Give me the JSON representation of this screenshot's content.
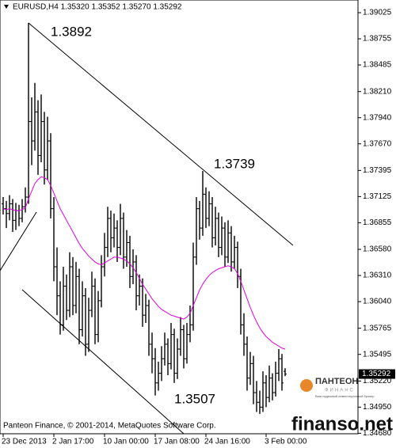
{
  "chart_data": {
    "type": "ohlc",
    "title": "EURUSD,H4  1.35320 1.35352 1.35270 1.35292",
    "footnote": "Panteon Finance, © 2001-2014, MetaQuotes Software Corp.",
    "watermark": "finanso.net",
    "logo": {
      "name": "ПАНТЕОН",
      "sub": "ФИНАНС",
      "tagline": "Ваш надежный инвестиционный брокер"
    },
    "annotations": [
      "1.3892",
      "1.3739",
      "1.3507"
    ],
    "bar_color": "#000000",
    "ma_color": "#e000e0",
    "ylim": [
      1.34675,
      1.39156
    ],
    "yticks": [
      1.39025,
      1.38755,
      1.38485,
      {
        "value": 1.3821,
        "label": "1.38210"
      },
      {
        "value": 1.3794,
        "label": "1.37940"
      },
      {
        "value": 1.3767,
        "label": "1.37670"
      },
      1.37395,
      1.37125,
      1.36855,
      {
        "value": 1.3658,
        "label": "1.36580"
      },
      {
        "value": 1.3631,
        "label": "1.36310"
      },
      {
        "value": 1.3604,
        "label": "1.36040"
      },
      1.35765,
      1.35495,
      {
        "value": 1.3522,
        "label": "1.35220"
      },
      {
        "value": 1.3495,
        "label": "1.34950"
      },
      {
        "value": 1.3468,
        "label": "1.34680"
      }
    ],
    "categories": [
      "23 Dec 2013",
      null,
      null,
      null,
      null,
      null,
      null,
      null,
      null,
      null,
      null,
      null,
      null,
      null,
      null,
      null,
      "2 Jan 17:00",
      null,
      null,
      null,
      null,
      null,
      null,
      null,
      null,
      null,
      null,
      null,
      null,
      null,
      null,
      null,
      "10 Jan 00:00",
      null,
      null,
      null,
      null,
      null,
      null,
      null,
      null,
      null,
      null,
      null,
      null,
      null,
      null,
      null,
      "17 Jan 08:00",
      null,
      null,
      null,
      null,
      null,
      null,
      null,
      null,
      null,
      null,
      null,
      null,
      null,
      null,
      null,
      "24 Jan 16:00",
      null,
      null,
      null,
      null,
      null,
      null,
      null,
      null,
      null,
      null,
      null,
      null,
      null,
      null,
      null,
      null,
      null,
      null,
      "3 Feb 00:00",
      null,
      null,
      null,
      null,
      null,
      null
    ],
    "ohlc": [
      [
        1.3705,
        1.3712,
        1.3694,
        1.37
      ],
      [
        1.37,
        1.3708,
        1.368,
        1.3695
      ],
      [
        1.3695,
        1.3714,
        1.3688,
        1.3705
      ],
      [
        1.3705,
        1.371,
        1.3676,
        1.3688
      ],
      [
        1.3688,
        1.3706,
        1.3678,
        1.3698
      ],
      [
        1.3698,
        1.3704,
        1.3682,
        1.369
      ],
      [
        1.369,
        1.371,
        1.3686,
        1.3702
      ],
      [
        1.3702,
        1.3722,
        1.3696,
        1.3712
      ],
      [
        1.3712,
        1.3892,
        1.3705,
        1.379
      ],
      [
        1.379,
        1.3815,
        1.3745,
        1.377
      ],
      [
        1.377,
        1.383,
        1.376,
        1.38
      ],
      [
        1.38,
        1.3812,
        1.3735,
        1.3755
      ],
      [
        1.3755,
        1.3818,
        1.3748,
        1.379
      ],
      [
        1.379,
        1.38,
        1.3725,
        1.374
      ],
      [
        1.374,
        1.3795,
        1.373,
        1.377
      ],
      [
        1.377,
        1.3778,
        1.369,
        1.37
      ],
      [
        1.37,
        1.3712,
        1.3625,
        1.364
      ],
      [
        1.364,
        1.366,
        1.359,
        1.361
      ],
      [
        1.361,
        1.3625,
        1.357,
        1.358
      ],
      [
        1.358,
        1.364,
        1.3574,
        1.362
      ],
      [
        1.362,
        1.3632,
        1.3585,
        1.3595
      ],
      [
        1.3595,
        1.3655,
        1.3588,
        1.364
      ],
      [
        1.364,
        1.365,
        1.359,
        1.36
      ],
      [
        1.36,
        1.3645,
        1.3592,
        1.363
      ],
      [
        1.363,
        1.3638,
        1.356,
        1.3575
      ],
      [
        1.3575,
        1.3625,
        1.3568,
        1.361
      ],
      [
        1.361,
        1.3618,
        1.3548,
        1.356
      ],
      [
        1.356,
        1.3608,
        1.3552,
        1.3595
      ],
      [
        1.3595,
        1.3635,
        1.3588,
        1.362
      ],
      [
        1.362,
        1.3628,
        1.356,
        1.357
      ],
      [
        1.357,
        1.3615,
        1.3562,
        1.3605
      ],
      [
        1.3605,
        1.3652,
        1.3598,
        1.364
      ],
      [
        1.364,
        1.3675,
        1.363,
        1.366
      ],
      [
        1.366,
        1.3702,
        1.365,
        1.369
      ],
      [
        1.369,
        1.3698,
        1.3655,
        1.367
      ],
      [
        1.367,
        1.3695,
        1.366,
        1.368
      ],
      [
        1.368,
        1.3688,
        1.3645,
        1.366
      ],
      [
        1.366,
        1.3705,
        1.3652,
        1.369
      ],
      [
        1.369,
        1.3696,
        1.3638,
        1.365
      ],
      [
        1.365,
        1.3678,
        1.364,
        1.3665
      ],
      [
        1.3665,
        1.3672,
        1.3618,
        1.363
      ],
      [
        1.363,
        1.3658,
        1.3622,
        1.3645
      ],
      [
        1.3645,
        1.3652,
        1.3595,
        1.361
      ],
      [
        1.361,
        1.3632,
        1.36,
        1.362
      ],
      [
        1.362,
        1.3628,
        1.3578,
        1.359
      ],
      [
        1.359,
        1.3612,
        1.3582,
        1.36
      ],
      [
        1.36,
        1.3606,
        1.3548,
        1.356
      ],
      [
        1.356,
        1.3572,
        1.353,
        1.3545
      ],
      [
        1.3545,
        1.3556,
        1.3507,
        1.352
      ],
      [
        1.352,
        1.3542,
        1.3512,
        1.353
      ],
      [
        1.353,
        1.3558,
        1.3522,
        1.3545
      ],
      [
        1.3545,
        1.3572,
        1.3538,
        1.356
      ],
      [
        1.356,
        1.3566,
        1.3528,
        1.354
      ],
      [
        1.354,
        1.3582,
        1.3534,
        1.357
      ],
      [
        1.357,
        1.3576,
        1.352,
        1.353
      ],
      [
        1.353,
        1.3566,
        1.3524,
        1.3555
      ],
      [
        1.3555,
        1.3588,
        1.3548,
        1.3575
      ],
      [
        1.3575,
        1.358,
        1.3535,
        1.3545
      ],
      [
        1.3545,
        1.3582,
        1.354,
        1.357
      ],
      [
        1.357,
        1.36,
        1.3562,
        1.358
      ],
      [
        1.358,
        1.3665,
        1.3574,
        1.365
      ],
      [
        1.365,
        1.3712,
        1.3642,
        1.37
      ],
      [
        1.37,
        1.3708,
        1.3668,
        1.368
      ],
      [
        1.368,
        1.3739,
        1.3672,
        1.3715
      ],
      [
        1.3715,
        1.3722,
        1.368,
        1.369
      ],
      [
        1.369,
        1.3718,
        1.3682,
        1.3705
      ],
      [
        1.3705,
        1.3712,
        1.366,
        1.367
      ],
      [
        1.367,
        1.3702,
        1.3662,
        1.369
      ],
      [
        1.369,
        1.3696,
        1.365,
        1.366
      ],
      [
        1.366,
        1.3692,
        1.3652,
        1.368
      ],
      [
        1.368,
        1.3686,
        1.364,
        1.365
      ],
      [
        1.365,
        1.3688,
        1.3644,
        1.3675
      ],
      [
        1.3675,
        1.3682,
        1.3635,
        1.3645
      ],
      [
        1.3645,
        1.3672,
        1.3638,
        1.366
      ],
      [
        1.366,
        1.3666,
        1.3618,
        1.363
      ],
      [
        1.363,
        1.3638,
        1.357,
        1.358
      ],
      [
        1.358,
        1.3592,
        1.3548,
        1.356
      ],
      [
        1.356,
        1.3568,
        1.3512,
        1.3525
      ],
      [
        1.3525,
        1.3552,
        1.3518,
        1.354
      ],
      [
        1.354,
        1.3548,
        1.3498,
        1.351
      ],
      [
        1.351,
        1.3522,
        1.349,
        1.35
      ],
      [
        1.35,
        1.3512,
        1.3488,
        1.3495
      ],
      [
        1.3495,
        1.3532,
        1.349,
        1.352
      ],
      [
        1.352,
        1.3528,
        1.3495,
        1.3505
      ],
      [
        1.3505,
        1.3538,
        1.35,
        1.3525
      ],
      [
        1.3525,
        1.353,
        1.3502,
        1.351
      ],
      [
        1.351,
        1.3542,
        1.3506,
        1.353
      ],
      [
        1.353,
        1.3555,
        1.3522,
        1.3545
      ],
      [
        1.3545,
        1.355,
        1.3512,
        1.352
      ],
      [
        1.3532,
        1.35352,
        1.3527,
        1.35292
      ]
    ],
    "ma": [
      1.37,
      1.3699,
      1.37,
      1.3699,
      1.3698,
      1.3698,
      1.3699,
      1.3701,
      1.371,
      1.3718,
      1.3726,
      1.373,
      1.3733,
      1.3732,
      1.373,
      1.3724,
      1.3716,
      1.3708,
      1.37,
      1.3694,
      1.3688,
      1.3682,
      1.3676,
      1.367,
      1.3664,
      1.3659,
      1.3655,
      1.3651,
      1.3648,
      1.3645,
      1.3643,
      1.3642,
      1.3644,
      1.3646,
      1.3648,
      1.365,
      1.365,
      1.3649,
      1.3648,
      1.3646,
      1.3643,
      1.3639,
      1.3634,
      1.3628,
      1.3622,
      1.3617,
      1.3612,
      1.3607,
      1.3603,
      1.3599,
      1.3596,
      1.3594,
      1.3592,
      1.359,
      1.3589,
      1.3588,
      1.3587,
      1.3586,
      1.3588,
      1.3592,
      1.36,
      1.3608,
      1.3616,
      1.3622,
      1.3627,
      1.3631,
      1.3634,
      1.3636,
      1.3638,
      1.3639,
      1.364,
      1.3641,
      1.364,
      1.3638,
      1.3633,
      1.3625,
      1.3616,
      1.3607,
      1.3598,
      1.359,
      1.3583,
      1.3577,
      1.3572,
      1.3568,
      1.3565,
      1.3562,
      1.356,
      1.3558,
      1.3556,
      1.3555
    ]
  }
}
